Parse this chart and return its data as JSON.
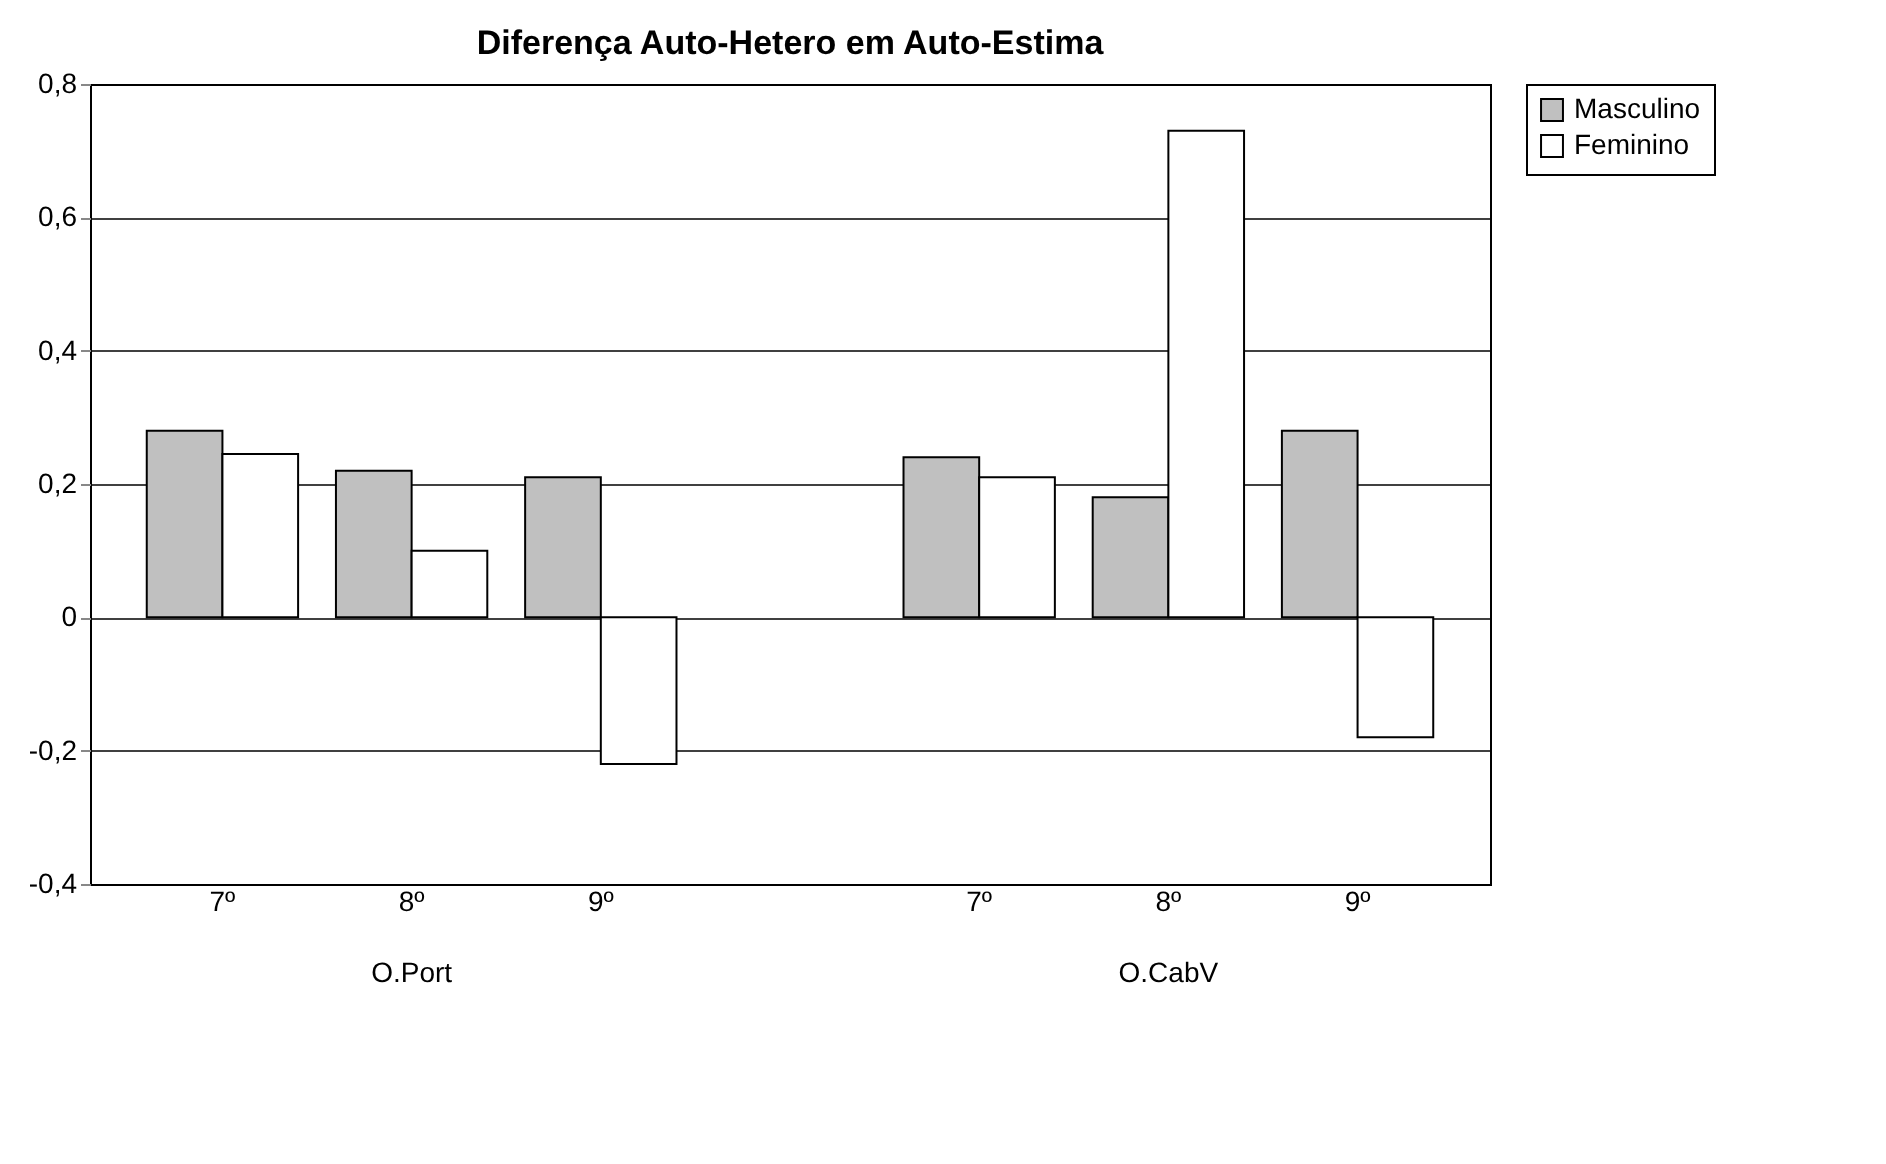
{
  "chart_data": {
    "type": "bar",
    "title": "Diferença Auto-Hetero em Auto-Estima",
    "categories": [
      "7º",
      "8º",
      "9º",
      null,
      "7º",
      "8º",
      "9º"
    ],
    "annotations": [
      "O.Port",
      "O.CabV"
    ],
    "series": [
      {
        "name": "Masculino",
        "color": "#c0c0c0",
        "values": [
          0.28,
          0.22,
          0.21,
          null,
          0.24,
          0.18,
          0.28
        ]
      },
      {
        "name": "Feminino",
        "color": "#ffffff",
        "values": [
          0.245,
          0.1,
          -0.22,
          null,
          0.21,
          0.73,
          -0.18
        ]
      }
    ],
    "ylim": [
      -0.4,
      0.8
    ],
    "yticks": [
      {
        "value": -0.4,
        "label": "-0,4"
      },
      {
        "value": -0.2,
        "label": "-0,2"
      },
      0,
      {
        "value": 0.2,
        "label": "0,2"
      },
      {
        "value": 0.4,
        "label": "0,4"
      },
      {
        "value": 0.6,
        "label": "0,6"
      },
      {
        "value": 0.8,
        "label": "0,8"
      }
    ],
    "grid": "y",
    "legend": "right"
  }
}
